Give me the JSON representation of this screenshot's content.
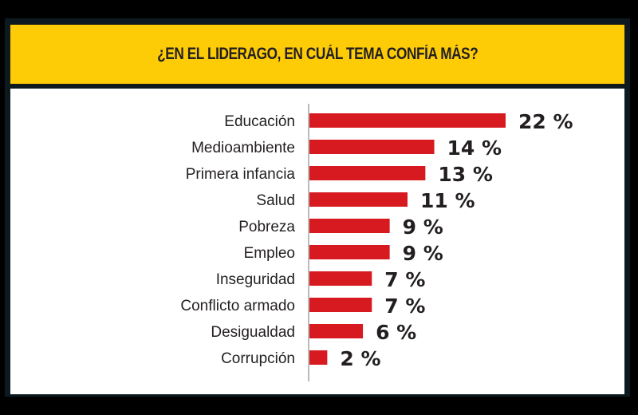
{
  "colors": {
    "bar": "#d71920",
    "title_band": "#fdcc07",
    "text": "#231f20",
    "axis": "#777777"
  },
  "chart_data": {
    "type": "bar",
    "orientation": "horizontal",
    "title": "¿EN EL LIDERAGO, EN CUÁL TEMA CONFÍA MÁS?",
    "xlabel": "",
    "ylabel": "",
    "categories": [
      "Educación",
      "Medioambiente",
      "Primera infancia",
      "Salud",
      "Pobreza",
      "Empleo",
      "Inseguridad",
      "Conflicto armado",
      "Desigualdad",
      "Corrupción"
    ],
    "values": [
      22,
      14,
      13,
      11,
      9,
      9,
      7,
      7,
      6,
      2
    ],
    "labels": [
      "22 %",
      "14 %",
      "13 %",
      "11 %",
      "9 %",
      "9 %",
      "7 %",
      "7 %",
      "6 %",
      "2 %"
    ],
    "unit": "%",
    "xlim": [
      0,
      22
    ],
    "grid": false,
    "legend": "none"
  }
}
